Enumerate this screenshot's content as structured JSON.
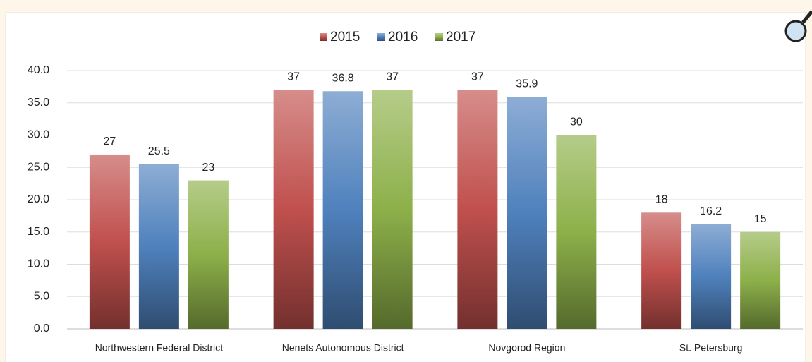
{
  "chart_data": {
    "type": "bar",
    "categories": [
      "Northwestern Federal District",
      "Nenets Autonomous District",
      "Novgorod Region",
      "St. Petersburg"
    ],
    "series": [
      {
        "name": "2015",
        "color": "#c0504d",
        "values": [
          27,
          37,
          37,
          18
        ]
      },
      {
        "name": "2016",
        "color": "#4f81bd",
        "values": [
          25.5,
          36.8,
          35.9,
          16.2
        ]
      },
      {
        "name": "2017",
        "color": "#8db04a",
        "values": [
          23,
          37,
          30,
          15
        ]
      }
    ],
    "ylim": [
      0,
      40
    ],
    "yticks": [
      {
        "value": 0,
        "label": "0.0"
      },
      {
        "value": 5,
        "label": "5.0"
      },
      {
        "value": 10,
        "label": "10.0"
      },
      {
        "value": 15,
        "label": "15.0"
      },
      {
        "value": 20,
        "label": "20.0"
      },
      {
        "value": 25,
        "label": "25.0"
      },
      {
        "value": 30,
        "label": "30.0"
      },
      {
        "value": 35,
        "label": "35.0"
      },
      {
        "value": 40,
        "label": "40.0"
      }
    ],
    "grid": true,
    "legend": "top"
  }
}
